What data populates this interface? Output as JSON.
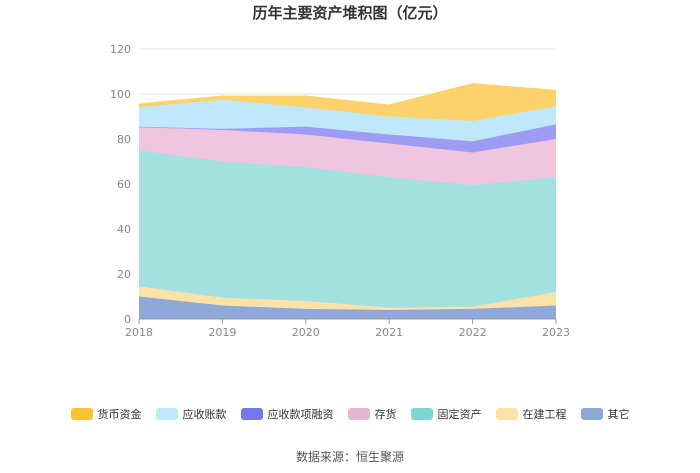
{
  "chart_data": {
    "type": "area",
    "stacked": true,
    "title": "历年主要资产堆积图（亿元）",
    "x": [
      "2018",
      "2019",
      "2020",
      "2021",
      "2022",
      "2023"
    ],
    "ylim": [
      0,
      120
    ],
    "yticks": [
      0,
      20,
      40,
      60,
      80,
      100,
      120
    ],
    "grid": true,
    "legend_position": "bottom",
    "series": [
      {
        "name": "其它",
        "color": "#8ea9d9",
        "values": [
          10,
          6,
          4.5,
          4,
          4.5,
          6
        ]
      },
      {
        "name": "在建工程",
        "color": "#fde2a8",
        "values": [
          4.5,
          3.5,
          3.5,
          1,
          1,
          6
        ]
      },
      {
        "name": "固定资产",
        "color": "#a3e1e1",
        "values": [
          60.5,
          60.5,
          59.5,
          58,
          54,
          51
        ]
      },
      {
        "name": "存货",
        "color": "#f0c6de",
        "values": [
          10.5,
          14,
          14.5,
          15,
          14.5,
          17
        ]
      },
      {
        "name": "应收款项融资",
        "color": "#9d9cf2",
        "values": [
          0,
          0.5,
          3.5,
          4,
          5,
          6.5
        ]
      },
      {
        "name": "应收账款",
        "color": "#bfe9fb",
        "values": [
          8.5,
          13,
          8.5,
          8,
          9,
          8
        ]
      },
      {
        "name": "货币资金",
        "color": "#fdd26a",
        "values": [
          1.5,
          1.5,
          5,
          5,
          16.5,
          7
        ]
      }
    ],
    "legend_order": [
      "货币资金",
      "应收账款",
      "应收款项融资",
      "存货",
      "固定资产",
      "在建工程",
      "其它"
    ]
  },
  "source_text": "数据来源：恒生聚源"
}
